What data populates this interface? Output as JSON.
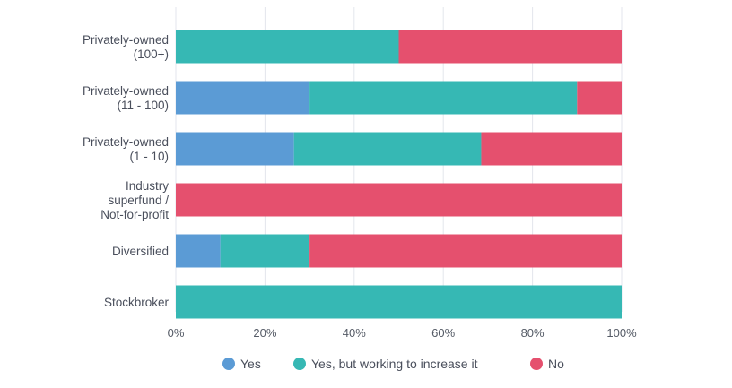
{
  "chart_data": {
    "type": "bar",
    "orientation": "horizontal",
    "stacked": true,
    "categories": [
      "Privately-owned (100+)",
      "Privately-owned (11 - 100)",
      "Privately-owned (1 - 10)",
      "Industry superfund / Not-for-profit",
      "Diversified",
      "Stockbroker"
    ],
    "category_label_lines": [
      [
        "Privately-owned",
        "(100+)"
      ],
      [
        "Privately-owned",
        "(11 - 100)"
      ],
      [
        "Privately-owned",
        "(1 - 10)"
      ],
      [
        "Industry",
        "superfund /",
        "Not-for-profit"
      ],
      [
        "Diversified"
      ],
      [
        "Stockbroker"
      ]
    ],
    "series": [
      {
        "name": "Yes",
        "color": "#5b9bd5",
        "values": [
          0,
          30,
          26.5,
          0,
          10,
          0
        ]
      },
      {
        "name": "Yes, but working to increase it",
        "color": "#36b8b4",
        "values": [
          50,
          60,
          42,
          0,
          20,
          100
        ]
      },
      {
        "name": "No",
        "color": "#e5506e",
        "values": [
          50,
          10,
          31.5,
          100,
          70,
          0
        ]
      }
    ],
    "xlim": [
      0,
      100
    ],
    "x_ticks": [
      "0%",
      "20%",
      "40%",
      "60%",
      "80%",
      "100%"
    ],
    "grid": "vertical",
    "legend_position": "bottom"
  }
}
